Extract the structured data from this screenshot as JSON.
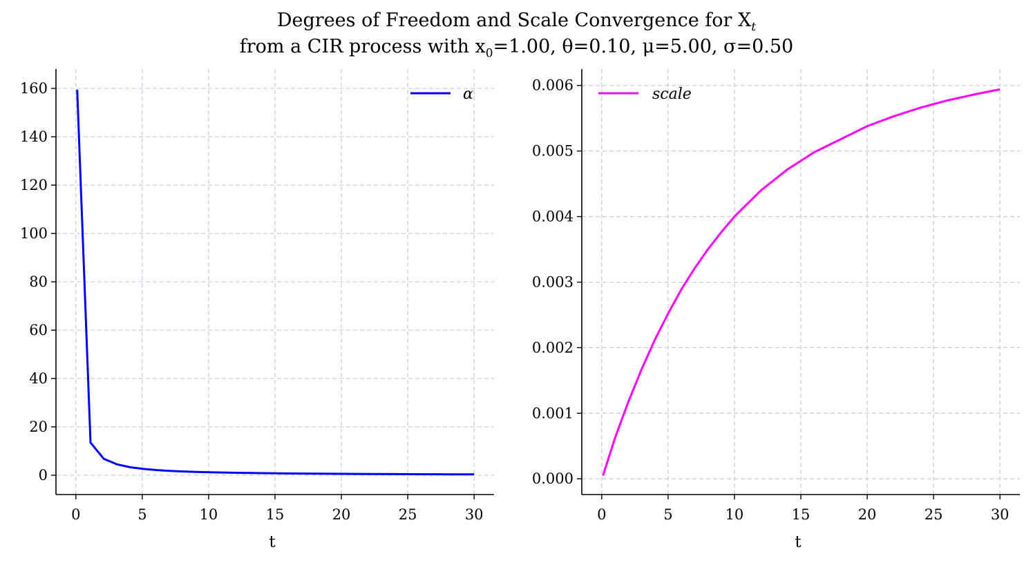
{
  "figure": {
    "title_line1": "Degrees of Freedom and Scale Convergence for X",
    "title_line1_sub": "t",
    "title_line2_a": "from a CIR process with x",
    "title_line2_sub": "0",
    "title_line2_b": "=1.00, θ=0.10, μ=5.00, σ=0.50"
  },
  "chart_data": [
    {
      "type": "line",
      "xlabel": "t",
      "ylabel": "",
      "xlim": [
        -1.5,
        31.5
      ],
      "ylim": [
        -8,
        168
      ],
      "xticks": [
        0,
        5,
        10,
        15,
        20,
        25,
        30
      ],
      "yticks": [
        0,
        20,
        40,
        60,
        80,
        100,
        120,
        140,
        160
      ],
      "grid": true,
      "legend": "top-right",
      "series": [
        {
          "name": "α",
          "color": "#0000ff",
          "x": [
            0.1,
            1.1,
            2.1,
            3.1,
            4.1,
            5.1,
            6.1,
            7.1,
            8.1,
            9.1,
            10.1,
            12.1,
            14.1,
            16.1,
            18.1,
            20.1,
            22.1,
            24.1,
            26.1,
            28.1,
            30.0
          ],
          "y": [
            159.5,
            13.5,
            6.8,
            4.5,
            3.3,
            2.6,
            2.1,
            1.8,
            1.55,
            1.35,
            1.2,
            1.0,
            0.85,
            0.72,
            0.63,
            0.56,
            0.5,
            0.45,
            0.41,
            0.38,
            0.35
          ]
        }
      ]
    },
    {
      "type": "line",
      "xlabel": "t",
      "ylabel": "",
      "xlim": [
        -1.5,
        31.5
      ],
      "ylim": [
        -0.00024,
        0.00625
      ],
      "xticks": [
        0,
        5,
        10,
        15,
        20,
        25,
        30
      ],
      "yticks": [
        0.0,
        0.001,
        0.002,
        0.003,
        0.004,
        0.005,
        0.006
      ],
      "ytick_labels": [
        "0.000",
        "0.001",
        "0.002",
        "0.003",
        "0.004",
        "0.005",
        "0.006"
      ],
      "grid": true,
      "legend": "top-left",
      "series": [
        {
          "name": "scale",
          "color": "#ff00ff",
          "x": [
            0.1,
            1,
            2,
            3,
            4,
            5,
            6,
            7,
            8,
            9,
            10,
            12,
            14,
            16,
            18,
            20,
            22,
            24,
            26,
            28,
            30
          ],
          "y": [
            5e-05,
            0.00062,
            0.00117,
            0.00167,
            0.00212,
            0.00252,
            0.00289,
            0.00321,
            0.0035,
            0.00376,
            0.004,
            0.0044,
            0.00472,
            0.00498,
            0.00518,
            0.00538,
            0.00553,
            0.00566,
            0.00577,
            0.00586,
            0.00594
          ]
        }
      ]
    }
  ]
}
